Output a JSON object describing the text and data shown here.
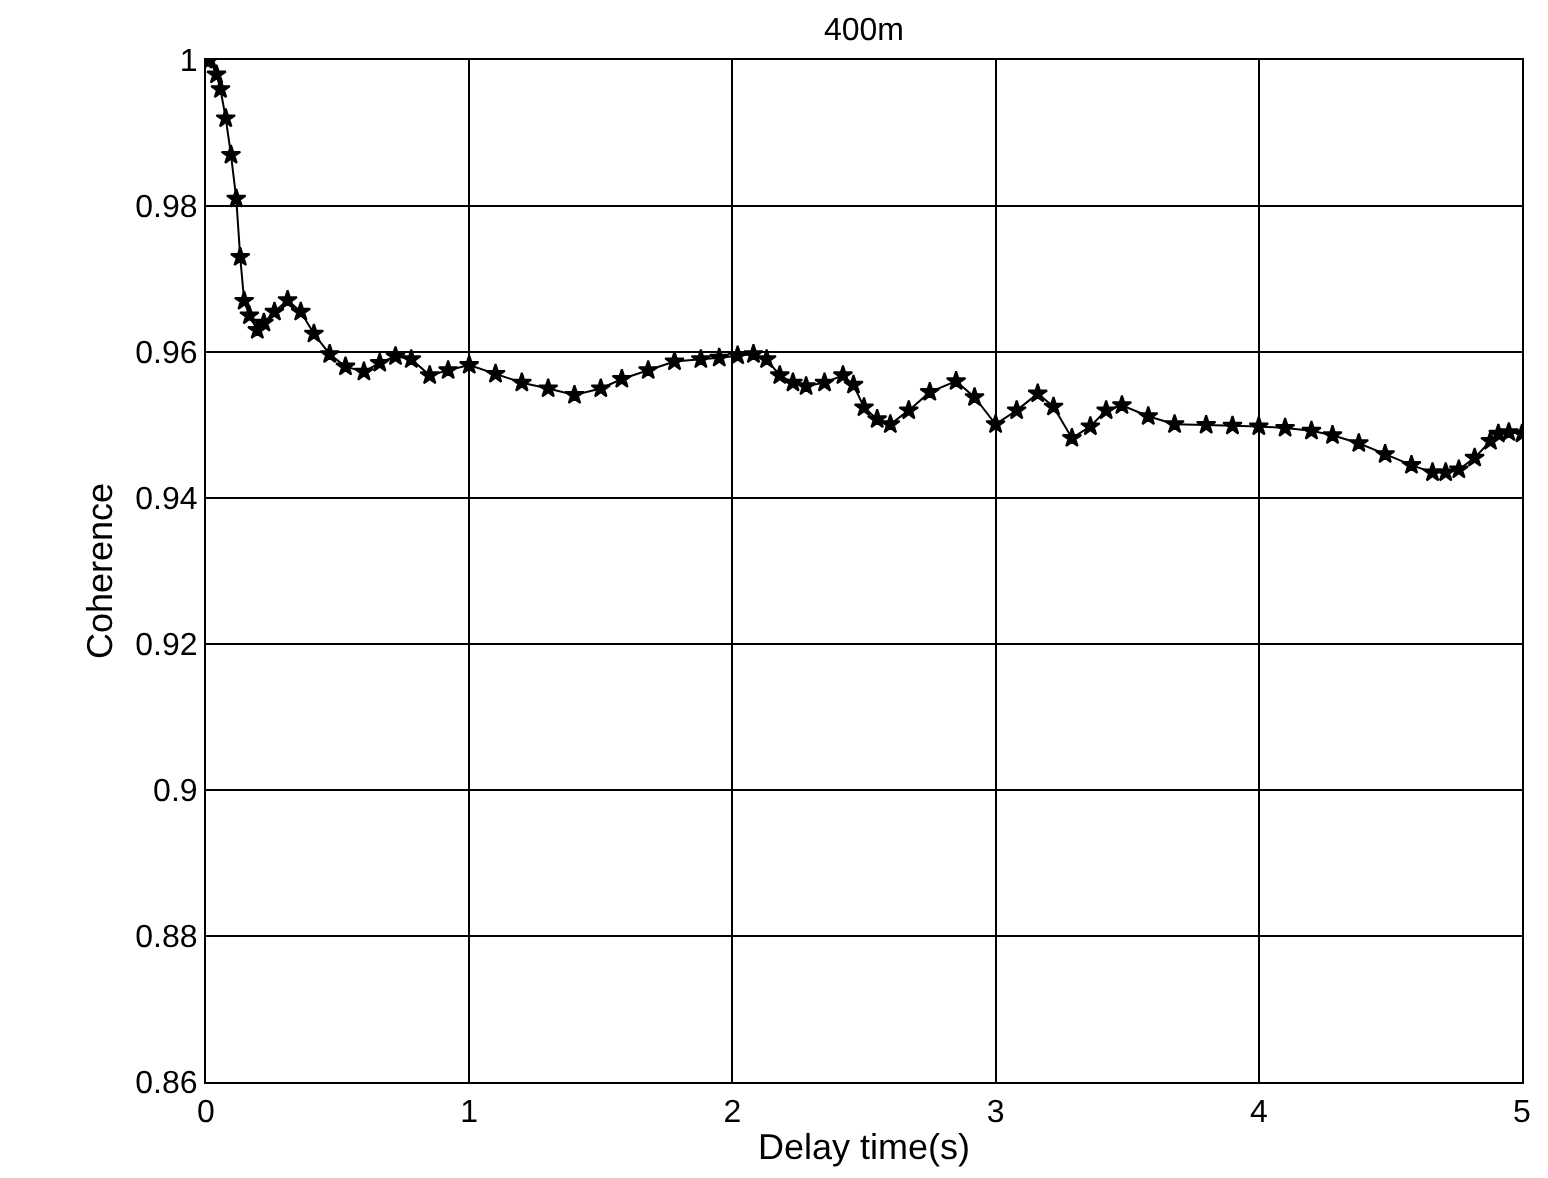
{
  "chart_data": {
    "type": "line",
    "title": "400m",
    "xlabel": "Delay time(s)",
    "ylabel": "Coherence",
    "x": [
      0,
      0.015,
      0.04,
      0.055,
      0.075,
      0.095,
      0.115,
      0.13,
      0.145,
      0.165,
      0.195,
      0.22,
      0.26,
      0.31,
      0.36,
      0.41,
      0.47,
      0.53,
      0.6,
      0.66,
      0.72,
      0.78,
      0.85,
      0.92,
      1.0,
      1.1,
      1.2,
      1.3,
      1.4,
      1.5,
      1.58,
      1.68,
      1.78,
      1.88,
      1.95,
      2.02,
      2.08,
      2.13,
      2.18,
      2.23,
      2.28,
      2.35,
      2.42,
      2.46,
      2.5,
      2.55,
      2.6,
      2.67,
      2.75,
      2.85,
      2.92,
      3.0,
      3.08,
      3.16,
      3.22,
      3.29,
      3.36,
      3.42,
      3.48,
      3.58,
      3.68,
      3.8,
      3.9,
      4.0,
      4.1,
      4.2,
      4.28,
      4.38,
      4.48,
      4.58,
      4.66,
      4.71,
      4.76,
      4.82,
      4.88,
      4.91,
      4.95,
      5.0
    ],
    "series": [
      {
        "color": "#000000",
        "values": [
          1.0,
          1.0,
          0.998,
          0.996,
          0.992,
          0.987,
          0.981,
          0.973,
          0.967,
          0.965,
          0.963,
          0.964,
          0.9655,
          0.9671,
          0.9655,
          0.9625,
          0.9597,
          0.958,
          0.9573,
          0.9585,
          0.9594,
          0.959,
          0.9568,
          0.9575,
          0.9582,
          0.957,
          0.9558,
          0.955,
          0.9541,
          0.955,
          0.9563,
          0.9575,
          0.9587,
          0.959,
          0.9592,
          0.9595,
          0.9597,
          0.959,
          0.9568,
          0.9558,
          0.9553,
          0.9558,
          0.9568,
          0.9555,
          0.9524,
          0.9508,
          0.9501,
          0.952,
          0.9545,
          0.956,
          0.9538,
          0.9501,
          0.952,
          0.9543,
          0.9525,
          0.9482,
          0.9498,
          0.952,
          0.9527,
          0.9512,
          0.9501,
          0.95,
          0.9499,
          0.9498,
          0.9496,
          0.9492,
          0.9486,
          0.9475,
          0.946,
          0.9445,
          0.9435,
          0.9435,
          0.9439,
          0.9455,
          0.9478,
          0.9488,
          0.949,
          0.9488
        ]
      }
    ],
    "xlim": [
      0,
      5
    ],
    "xticks": [
      0,
      1,
      2,
      3,
      4,
      5
    ],
    "ylim": [
      0.86,
      1
    ],
    "yticks": [
      0.86,
      0.88,
      0.9,
      0.92,
      0.94,
      0.96,
      0.98,
      1
    ],
    "grid": true,
    "marker": "star",
    "line_style": "solid"
  }
}
